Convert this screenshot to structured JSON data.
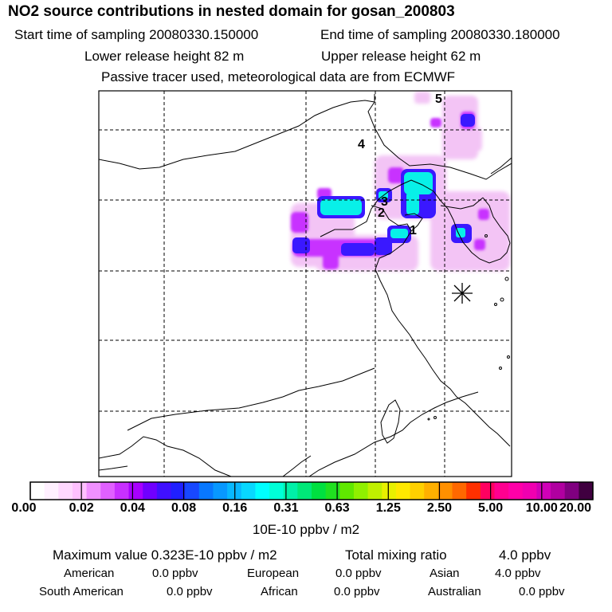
{
  "header": {
    "title": "NO2 source contributions in nested domain for gosan_200803",
    "start_label": "Start time of sampling 20080330.150000",
    "end_label": "End time of sampling 20080330.180000",
    "lower_label": "Lower release height   82 m",
    "upper_label": "Upper release height   62 m",
    "info": "Passive tracer used, meteorological data are from ECMWF"
  },
  "map": {
    "region_labels": [
      "1",
      "2",
      "3",
      "4",
      "5"
    ],
    "site_marker": "receptor-asterisk"
  },
  "colorbar": {
    "ticks": [
      "0.00",
      "0.02",
      "0.04",
      "0.08",
      "0.16",
      "0.31",
      "0.63",
      "1.25",
      "2.50",
      "5.00",
      "10.00",
      "20.00"
    ],
    "unit": "10E-10 ppbv / m2",
    "colors": [
      "#ffffff",
      "#fff0ff",
      "#ffd8ff",
      "#ffc0ff",
      "#f090ff",
      "#e060ff",
      "#c830ff",
      "#a800ff",
      "#7000ff",
      "#4010ff",
      "#2020ff",
      "#1848ff",
      "#0878ff",
      "#0898ff",
      "#08b8ff",
      "#08d8ff",
      "#00ffff",
      "#00ffd8",
      "#00f0a8",
      "#00e878",
      "#00e040",
      "#20e020",
      "#60e800",
      "#90f000",
      "#c0f000",
      "#e8f000",
      "#ffe800",
      "#ffd000",
      "#ffb000",
      "#ff9000",
      "#ff6800",
      "#ff3000",
      "#ff0060",
      "#ff0090",
      "#ff00a8",
      "#f000b0",
      "#d000b8",
      "#b000a0",
      "#800080",
      "#400040"
    ]
  },
  "footer": {
    "max_label": "Maximum value  0.323E-10 ppbv / m2",
    "total_label": "Total mixing ratio",
    "total_value": "4.0 ppbv",
    "american_label": "American",
    "american_value": "0.0 ppbv",
    "european_label": "European",
    "european_value": "0.0 ppbv",
    "asian_label": "Asian",
    "asian_value": "4.0 ppbv",
    "south_american_label": "South American",
    "south_american_value": "0.0 ppbv",
    "african_label": "African",
    "african_value": "0.0 ppbv",
    "australian_label": "Australian",
    "australian_value": "0.0 ppbv"
  }
}
